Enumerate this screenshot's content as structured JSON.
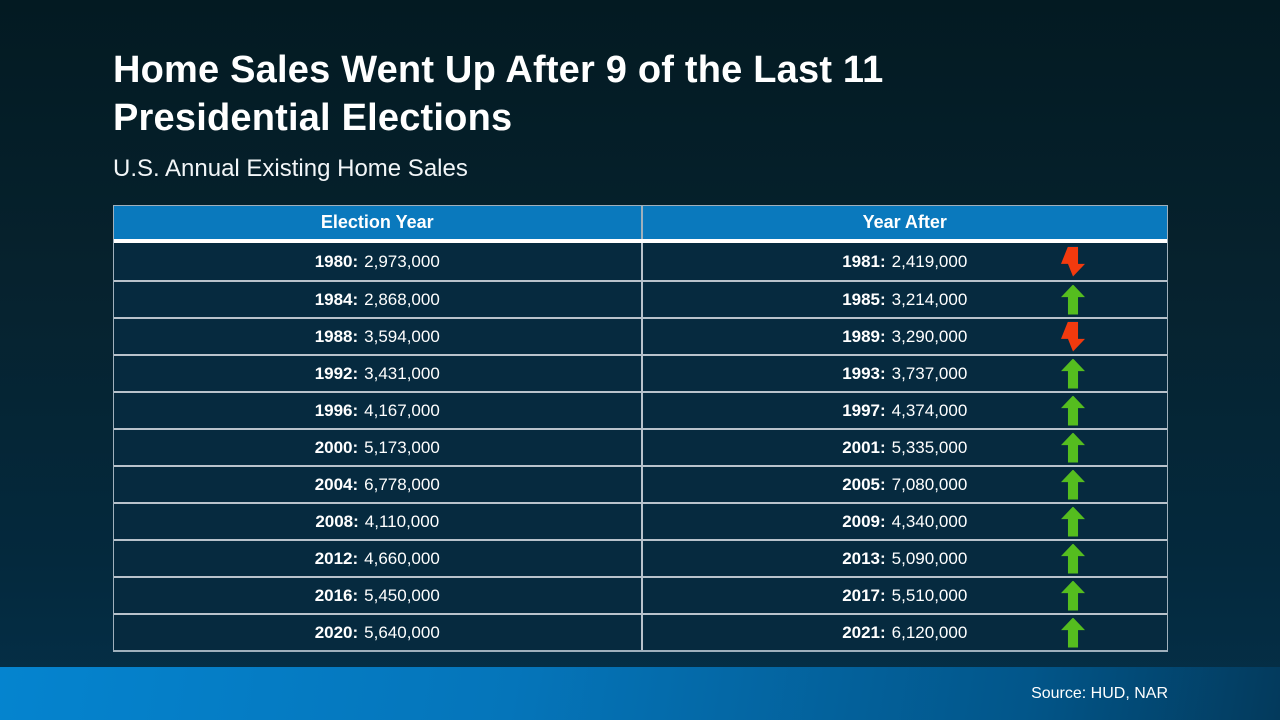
{
  "slide": {
    "title": "Home Sales Went Up After 9 of the Last 11 Presidential Elections",
    "subtitle": "U.S. Annual Existing Home Sales",
    "source": "Source: HUD, NAR"
  },
  "table": {
    "headers": [
      "Election Year",
      "Year After"
    ],
    "rows": [
      {
        "election_label": "1980:",
        "election_value": "2,973,000",
        "after_label": "1981:",
        "after_value": "2,419,000",
        "direction": "down"
      },
      {
        "election_label": "1984:",
        "election_value": "2,868,000",
        "after_label": "1985:",
        "after_value": "3,214,000",
        "direction": "up"
      },
      {
        "election_label": "1988:",
        "election_value": "3,594,000",
        "after_label": "1989:",
        "after_value": "3,290,000",
        "direction": "down"
      },
      {
        "election_label": "1992:",
        "election_value": "3,431,000",
        "after_label": "1993:",
        "after_value": "3,737,000",
        "direction": "up"
      },
      {
        "election_label": "1996:",
        "election_value": "4,167,000",
        "after_label": "1997:",
        "after_value": "4,374,000",
        "direction": "up"
      },
      {
        "election_label": "2000:",
        "election_value": "5,173,000",
        "after_label": "2001:",
        "after_value": "5,335,000",
        "direction": "up"
      },
      {
        "election_label": "2004:",
        "election_value": "6,778,000",
        "after_label": "2005:",
        "after_value": "7,080,000",
        "direction": "up"
      },
      {
        "election_label": "2008:",
        "election_value": "4,110,000",
        "after_label": "2009:",
        "after_value": "4,340,000",
        "direction": "up"
      },
      {
        "election_label": "2012:",
        "election_value": "4,660,000",
        "after_label": "2013:",
        "after_value": "5,090,000",
        "direction": "up"
      },
      {
        "election_label": "2016:",
        "election_value": "5,450,000",
        "after_label": "2017:",
        "after_value": "5,510,000",
        "direction": "up"
      },
      {
        "election_label": "2020:",
        "election_value": "5,640,000",
        "after_label": "2021:",
        "after_value": "6,120,000",
        "direction": "up"
      }
    ]
  },
  "colors": {
    "header_bg": "#0a79bd",
    "row_bg": "#062a3f",
    "row_border": "#b8c2cb",
    "up_arrow": "#55bd1f",
    "down_arrow": "#f23a0e",
    "footer_gradient_left": "#0584cf",
    "footer_gradient_right": "#033a5c"
  },
  "chart_data": {
    "type": "table",
    "title": "Home Sales Went Up After 9 of the Last 11 Presidential Elections",
    "subtitle": "U.S. Annual Existing Home Sales",
    "columns": [
      "Election Year",
      "Year After"
    ],
    "rows": [
      {
        "election_year": 1980,
        "election_year_sales": 2973000,
        "year_after": 1981,
        "year_after_sales": 2419000,
        "change": "down"
      },
      {
        "election_year": 1984,
        "election_year_sales": 2868000,
        "year_after": 1985,
        "year_after_sales": 3214000,
        "change": "up"
      },
      {
        "election_year": 1988,
        "election_year_sales": 3594000,
        "year_after": 1989,
        "year_after_sales": 3290000,
        "change": "down"
      },
      {
        "election_year": 1992,
        "election_year_sales": 3431000,
        "year_after": 1993,
        "year_after_sales": 3737000,
        "change": "up"
      },
      {
        "election_year": 1996,
        "election_year_sales": 4167000,
        "year_after": 1997,
        "year_after_sales": 4374000,
        "change": "up"
      },
      {
        "election_year": 2000,
        "election_year_sales": 5173000,
        "year_after": 2001,
        "year_after_sales": 5335000,
        "change": "up"
      },
      {
        "election_year": 2004,
        "election_year_sales": 6778000,
        "year_after": 2005,
        "year_after_sales": 7080000,
        "change": "up"
      },
      {
        "election_year": 2008,
        "election_year_sales": 4110000,
        "year_after": 2009,
        "year_after_sales": 4340000,
        "change": "up"
      },
      {
        "election_year": 2012,
        "election_year_sales": 4660000,
        "year_after": 2013,
        "year_after_sales": 5090000,
        "change": "up"
      },
      {
        "election_year": 2016,
        "election_year_sales": 5450000,
        "year_after": 2017,
        "year_after_sales": 5510000,
        "change": "up"
      },
      {
        "election_year": 2020,
        "election_year_sales": 5640000,
        "year_after": 2021,
        "year_after_sales": 6120000,
        "change": "up"
      }
    ],
    "source": "Source: HUD, NAR"
  }
}
